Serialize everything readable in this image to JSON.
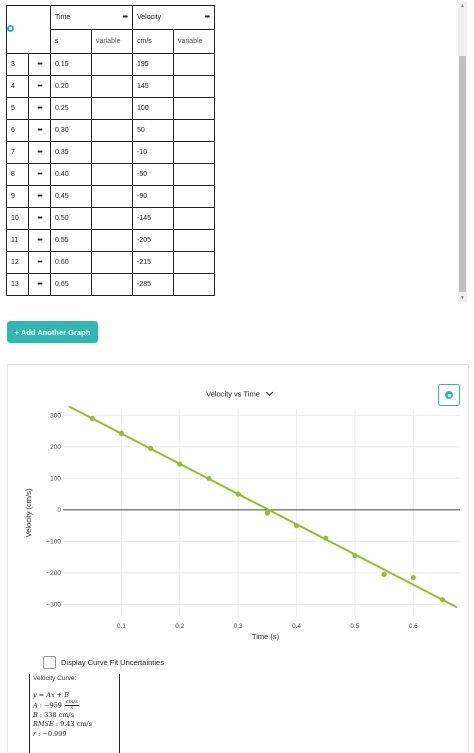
{
  "data_table": {
    "columns": [
      {
        "name": "Time",
        "unit": "s",
        "type": "variable"
      },
      {
        "name": "Velocity",
        "unit": "cm/s",
        "type": "variable"
      }
    ],
    "menu_glyph": "•••",
    "rows": [
      {
        "index": "3",
        "time": "0.15",
        "velocity": "195"
      },
      {
        "index": "4",
        "time": "0.20",
        "velocity": "145"
      },
      {
        "index": "5",
        "time": "0.25",
        "velocity": "100"
      },
      {
        "index": "6",
        "time": "0.30",
        "velocity": "50"
      },
      {
        "index": "7",
        "time": "0.35",
        "velocity": "-10"
      },
      {
        "index": "8",
        "time": "0.40",
        "velocity": "-50"
      },
      {
        "index": "9",
        "time": "0.45",
        "velocity": "-90"
      },
      {
        "index": "10",
        "time": "0.50",
        "velocity": "-145"
      },
      {
        "index": "11",
        "time": "0.55",
        "velocity": "-205"
      },
      {
        "index": "12",
        "time": "0.60",
        "velocity": "-215"
      },
      {
        "index": "13",
        "time": "0.65",
        "velocity": "-285"
      }
    ],
    "scrollbar": {
      "up_glyph": "▲",
      "down_glyph": "▼"
    },
    "settings_icon": "gear-icon"
  },
  "add_graph_button": {
    "label": "+ Add Another Graph"
  },
  "graph": {
    "title": "Velocity vs Time",
    "settings_icon": "gear-icon",
    "accent_color": "#2fb8b3",
    "fit_toggle_label": "Display Curve Fit Uncertainties",
    "fit": {
      "title": "Velocity Curve:",
      "line1": "y = Ax + B",
      "A_label": "A",
      "A_value": "−959",
      "A_unit_num": "cm/s",
      "A_unit_den": "s",
      "B_label": "B",
      "B_value": "338",
      "B_unit": "cm/s",
      "rmse_label": "RMSE",
      "rmse_value": "9.43",
      "rmse_unit": "cm/s",
      "r_label": "r",
      "r_value": "−0.999"
    }
  },
  "chart_data": {
    "type": "scatter",
    "xlabel": "Time (s)",
    "ylabel": "Velocity (cm/s)",
    "xlim": [
      0,
      0.68
    ],
    "ylim": [
      -340,
      320
    ],
    "x_ticks": [
      0.1,
      0.2,
      0.3,
      0.4,
      0.5,
      0.6
    ],
    "y_ticks": [
      300,
      200,
      100,
      0,
      -100,
      -200,
      -300
    ],
    "grid": true,
    "point_color": "#8fc31f",
    "line_color": "#8fc31f",
    "points": [
      {
        "x": 0.05,
        "y": 290
      },
      {
        "x": 0.1,
        "y": 243
      },
      {
        "x": 0.15,
        "y": 195
      },
      {
        "x": 0.2,
        "y": 145
      },
      {
        "x": 0.25,
        "y": 100
      },
      {
        "x": 0.3,
        "y": 50
      },
      {
        "x": 0.35,
        "y": -10
      },
      {
        "x": 0.4,
        "y": -50
      },
      {
        "x": 0.45,
        "y": -90
      },
      {
        "x": 0.5,
        "y": -145
      },
      {
        "x": 0.55,
        "y": -205
      },
      {
        "x": 0.6,
        "y": -215
      },
      {
        "x": 0.65,
        "y": -285
      }
    ],
    "fit_line": {
      "slope": -959,
      "intercept": 338,
      "x_range": [
        0,
        0.68
      ]
    }
  }
}
